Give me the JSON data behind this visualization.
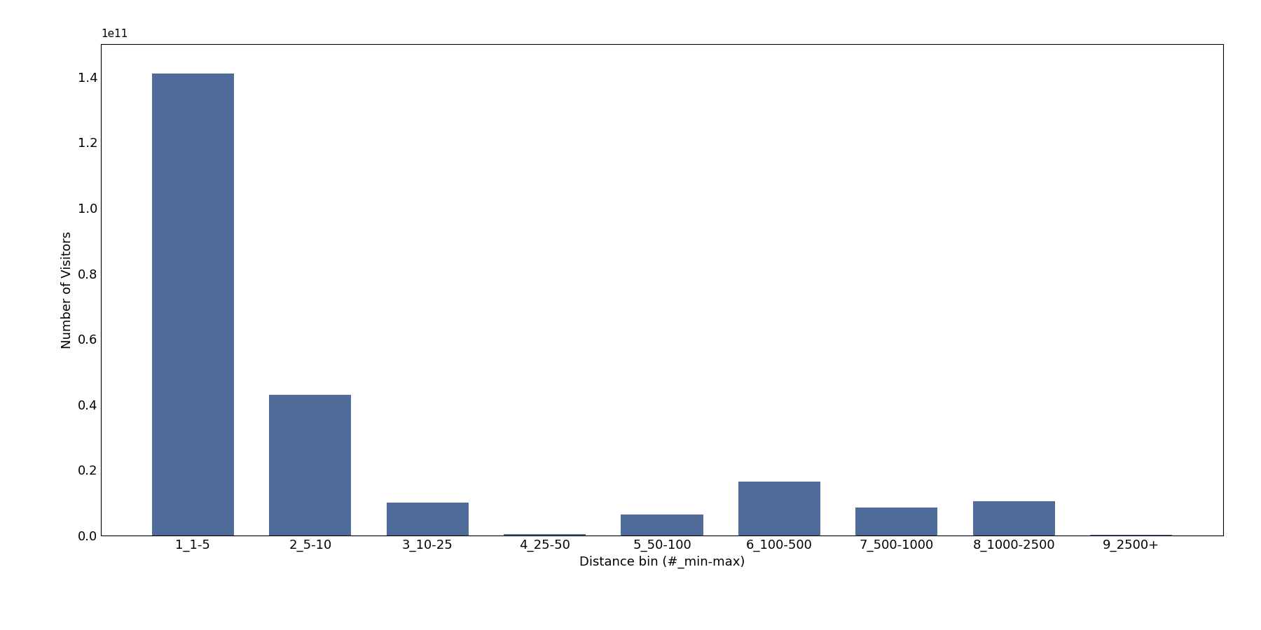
{
  "categories": [
    "1_1-5",
    "2_5-10",
    "3_10-25",
    "4_25-50",
    "5_50-100",
    "6_100-500",
    "7_500-1000",
    "8_1000-2500",
    "9_2500+"
  ],
  "values": [
    141000000000.0,
    43000000000.0,
    10000000000.0,
    500000000.0,
    6500000000.0,
    16500000000.0,
    8500000000.0,
    10500000000.0,
    200000000.0
  ],
  "bar_color": "#4f6b9a",
  "xlabel": "Distance bin (#_min-max)",
  "ylabel": "Number of Visitors",
  "ylim": [
    0,
    150000000000.0
  ],
  "background_color": "#ffffff",
  "figsize": [
    18.0,
    9.0
  ],
  "dpi": 100,
  "bar_width": 0.7
}
